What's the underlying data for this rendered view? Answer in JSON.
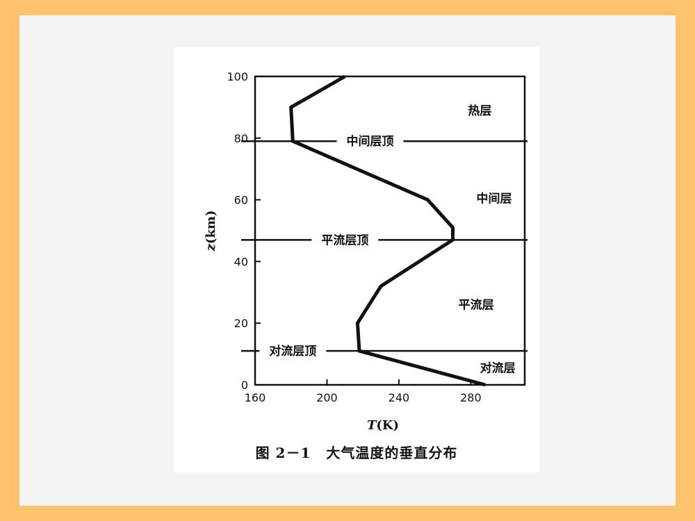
{
  "caption": {
    "number": "图 2－1",
    "text": "大气温度的垂直分布"
  },
  "chart_data": {
    "type": "line",
    "xlabel_italic": "T",
    "xlabel_unit": "(K)",
    "ylabel_italic": "z",
    "ylabel_unit": "(km)",
    "xlim": [
      160,
      310
    ],
    "ylim": [
      0,
      100
    ],
    "xticks": [
      160,
      200,
      240,
      280
    ],
    "yticks": [
      0,
      20,
      40,
      60,
      80,
      100
    ],
    "series": [
      {
        "points": [
          {
            "x": 288,
            "y": 0
          },
          {
            "x": 218,
            "y": 11
          },
          {
            "x": 217,
            "y": 20
          },
          {
            "x": 230,
            "y": 32
          },
          {
            "x": 270,
            "y": 47
          },
          {
            "x": 270,
            "y": 51
          },
          {
            "x": 256,
            "y": 60
          },
          {
            "x": 181,
            "y": 79
          },
          {
            "x": 180,
            "y": 90
          },
          {
            "x": 210,
            "y": 100
          }
        ]
      }
    ],
    "boundaries": [
      {
        "label": "对流层顶",
        "z": 11,
        "label_x": 181
      },
      {
        "label": "平流层顶",
        "z": 47,
        "label_x": 210
      },
      {
        "label": "中间层顶",
        "z": 79,
        "label_x": 224
      }
    ],
    "layers": [
      {
        "label": "对流层",
        "x": 295,
        "y": 5.5
      },
      {
        "label": "平流层",
        "x": 283,
        "y": 26
      },
      {
        "label": "中间层",
        "x": 293,
        "y": 60.5
      },
      {
        "label": "热层",
        "x": 285,
        "y": 89
      }
    ]
  }
}
